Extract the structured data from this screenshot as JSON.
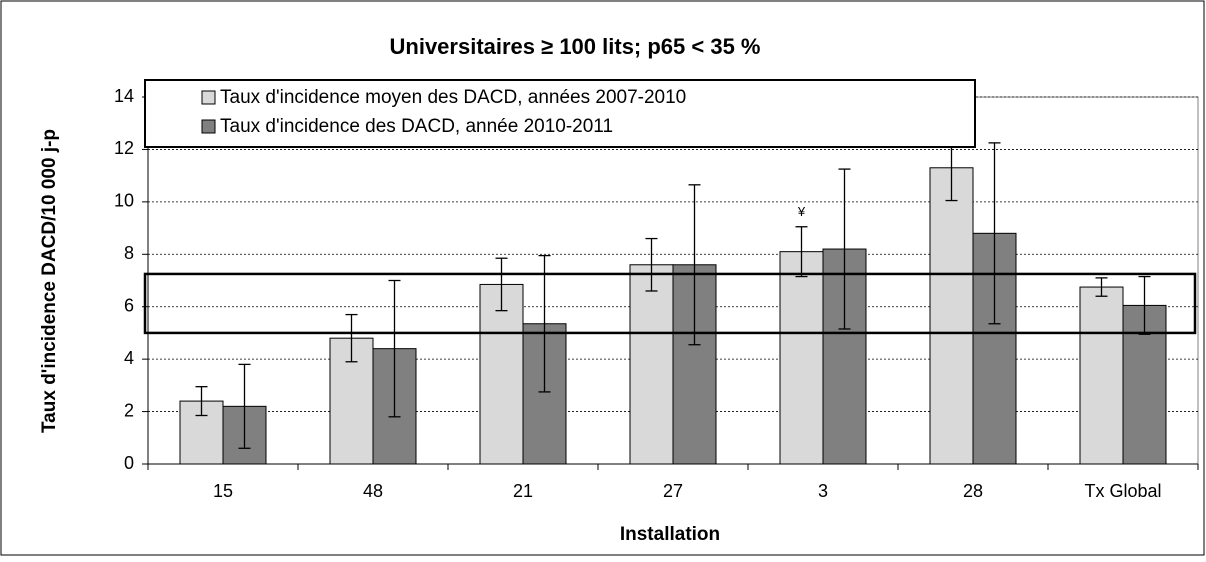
{
  "chart_data": {
    "type": "bar",
    "title": "Universitaires ≥ 100 lits; p65 < 35 %",
    "x_label": "Installation",
    "y_label": "Taux d'incidence DACD/10 000 j-p",
    "categories": [
      "15",
      "48",
      "21",
      "27",
      "3",
      "28",
      "Tx Global"
    ],
    "series": [
      {
        "name": "Taux d'incidence moyen des DACD, années 2007-2010",
        "color": "#d9d9d9",
        "values": [
          2.4,
          4.8,
          6.85,
          7.6,
          8.1,
          11.3,
          6.75
        ],
        "errors": [
          0.55,
          0.9,
          1.0,
          1.0,
          0.95,
          1.25,
          0.35
        ],
        "value_notes": [
          null,
          null,
          null,
          null,
          "¥",
          "¥",
          null
        ]
      },
      {
        "name": "Taux d'incidence des DACD, année 2010-2011",
        "color": "#808080",
        "values": [
          2.2,
          4.4,
          5.35,
          7.6,
          8.2,
          8.8,
          6.05
        ],
        "errors": [
          1.6,
          2.6,
          2.6,
          3.05,
          3.05,
          3.45,
          1.1
        ]
      }
    ],
    "band": [
      5,
      7.25
    ],
    "ylim": [
      0,
      14
    ],
    "yticks": [
      0,
      2,
      4,
      6,
      8,
      10,
      12,
      14
    ],
    "grid": true
  }
}
